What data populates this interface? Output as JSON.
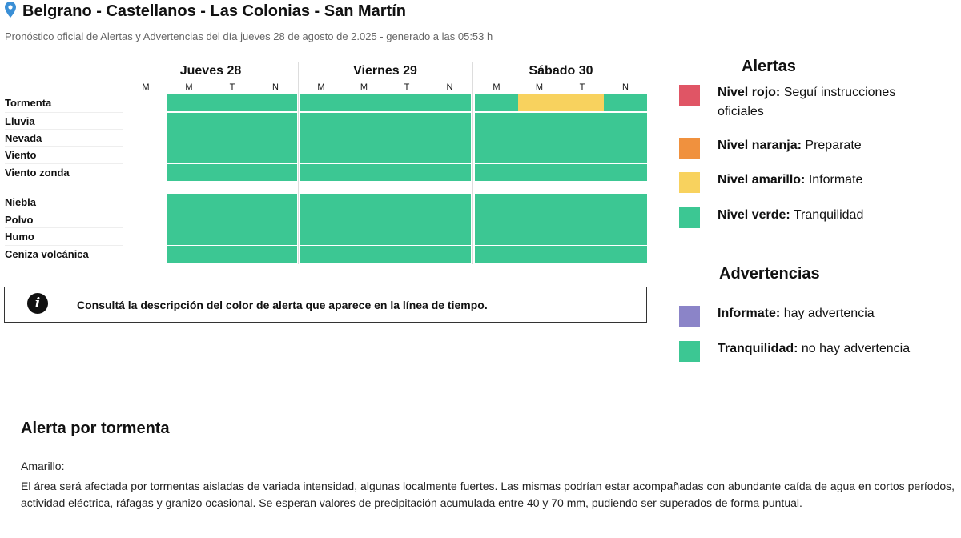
{
  "header": {
    "title": "Belgrano - Castellanos - Las Colonias - San Martín",
    "subtitle": "Pronóstico oficial de Alertas y Advertencias del día jueves 28 de agosto de 2.025 - generado a las 05:53 h"
  },
  "timeline": {
    "days": [
      {
        "label": "Jueves 28",
        "periods": [
          "M",
          "M",
          "T",
          "N"
        ]
      },
      {
        "label": "Viernes 29",
        "periods": [
          "M",
          "M",
          "T",
          "N"
        ]
      },
      {
        "label": "Sábado 30",
        "periods": [
          "M",
          "M",
          "T",
          "N"
        ]
      }
    ],
    "alert_rows": [
      {
        "label": "Tormenta",
        "levels": [
          null,
          "green",
          "green",
          "green",
          "green",
          "green",
          "green",
          "green",
          "green",
          "yellow",
          "yellow",
          "green"
        ]
      },
      {
        "label": "Lluvia",
        "levels": [
          null,
          "green",
          "green",
          "green",
          "green",
          "green",
          "green",
          "green",
          "green",
          "green",
          "green",
          "green"
        ]
      },
      {
        "label": "Nevada",
        "levels": [
          null,
          "green",
          "green",
          "green",
          "green",
          "green",
          "green",
          "green",
          "green",
          "green",
          "green",
          "green"
        ]
      },
      {
        "label": "Viento",
        "levels": [
          null,
          "green",
          "green",
          "green",
          "green",
          "green",
          "green",
          "green",
          "green",
          "green",
          "green",
          "green"
        ]
      },
      {
        "label": "Viento zonda",
        "levels": [
          null,
          "green",
          "green",
          "green",
          "green",
          "green",
          "green",
          "green",
          "green",
          "green",
          "green",
          "green"
        ]
      }
    ],
    "warning_rows": [
      {
        "label": "Niebla",
        "levels": [
          null,
          "green",
          "green",
          "green",
          "green",
          "green",
          "green",
          "green",
          "green",
          "green",
          "green",
          "green"
        ]
      },
      {
        "label": "Polvo",
        "levels": [
          null,
          "green",
          "green",
          "green",
          "green",
          "green",
          "green",
          "green",
          "green",
          "green",
          "green",
          "green"
        ]
      },
      {
        "label": "Humo",
        "levels": [
          null,
          "green",
          "green",
          "green",
          "green",
          "green",
          "green",
          "green",
          "green",
          "green",
          "green",
          "green"
        ]
      },
      {
        "label": "Ceniza volcánica",
        "levels": [
          null,
          "green",
          "green",
          "green",
          "green",
          "green",
          "green",
          "green",
          "green",
          "green",
          "green",
          "green"
        ]
      }
    ]
  },
  "info_box": {
    "icon": "info-icon",
    "text": "Consultá la descripción del color de alerta que aparece en la línea de tiempo."
  },
  "legend": {
    "alerts_title": "Alertas",
    "alerts": [
      {
        "name": "Nivel rojo:",
        "desc": "Seguí instrucciones oficiales",
        "color": "#e05565"
      },
      {
        "name": "Nivel naranja:",
        "desc": "Preparate",
        "color": "#f0913e"
      },
      {
        "name": "Nivel amarillo:",
        "desc": "Informate",
        "color": "#f8d25e"
      },
      {
        "name": "Nivel verde:",
        "desc": "Tranquilidad",
        "color": "#3cc793"
      }
    ],
    "warnings_title": "Advertencias",
    "warnings": [
      {
        "name": "Informate:",
        "desc": "hay advertencia",
        "color": "#8b84c8"
      },
      {
        "name": "Tranquilidad:",
        "desc": "no hay advertencia",
        "color": "#3cc793"
      }
    ]
  },
  "alert_detail": {
    "title": "Alerta por tormenta",
    "level": "Amarillo:",
    "body": "El área será afectada por tormentas aisladas de variada intensidad, algunas localmente fuertes. Las mismas podrían estar acompañadas con abundante caída de agua en cortos períodos, actividad eléctrica, ráfagas y granizo ocasional. Se esperan valores de precipitación acumulada entre 40 y 70 mm, pudiendo ser superados de forma puntual."
  },
  "colors": {
    "green": "#3cc793",
    "yellow": "#f8d25e",
    "orange": "#f0913e",
    "red": "#e05565",
    "violet": "#8b84c8",
    "pin": "#3a8fd6"
  }
}
